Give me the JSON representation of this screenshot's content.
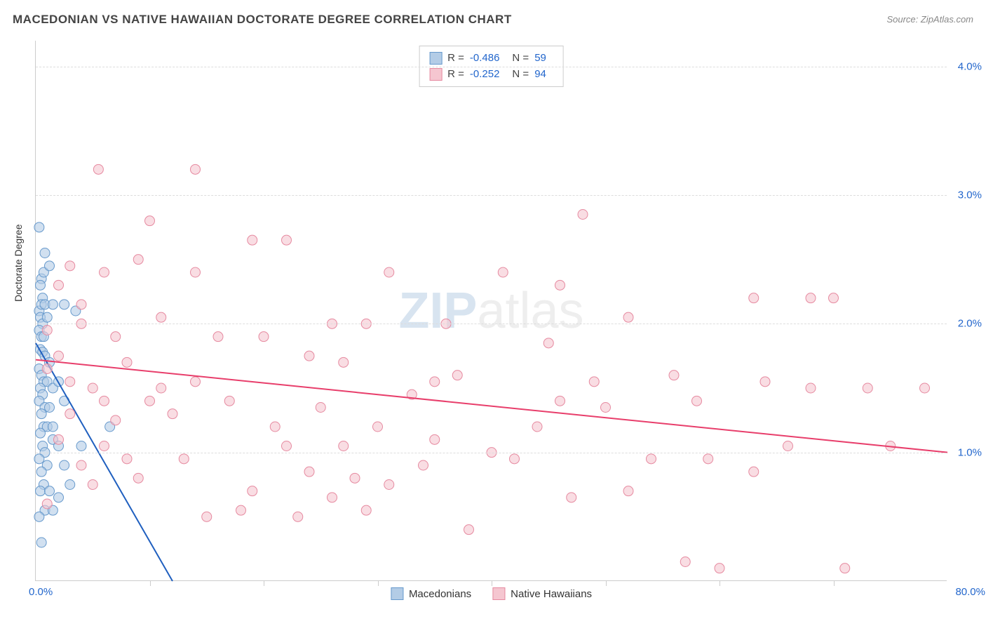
{
  "title": "MACEDONIAN VS NATIVE HAWAIIAN DOCTORATE DEGREE CORRELATION CHART",
  "source": "Source: ZipAtlas.com",
  "y_axis_label": "Doctorate Degree",
  "watermark_zip": "ZIP",
  "watermark_atlas": "atlas",
  "chart": {
    "type": "scatter",
    "xlim": [
      0,
      80
    ],
    "ylim": [
      0,
      4.2
    ],
    "x_min_label": "0.0%",
    "x_max_label": "80.0%",
    "y_ticks": [
      1.0,
      2.0,
      3.0,
      4.0
    ],
    "y_tick_labels": [
      "1.0%",
      "2.0%",
      "3.0%",
      "4.0%"
    ],
    "x_ticks": [
      10,
      20,
      30,
      40,
      50,
      60,
      70
    ],
    "grid_color": "#dddddd",
    "background_color": "#ffffff",
    "series": [
      {
        "name": "Macedonians",
        "color_fill": "#b3cce6",
        "color_stroke": "#6699cc",
        "marker_radius": 7,
        "marker_opacity": 0.6,
        "r_value": "-0.486",
        "n_value": "59",
        "regression": {
          "x1": 0,
          "y1": 1.85,
          "x2": 12,
          "y2": 0,
          "color": "#1f5fbf",
          "width": 2
        },
        "points": [
          [
            0.3,
            2.75
          ],
          [
            0.8,
            2.55
          ],
          [
            0.5,
            2.35
          ],
          [
            0.7,
            2.4
          ],
          [
            0.4,
            2.3
          ],
          [
            0.6,
            2.2
          ],
          [
            1.2,
            2.45
          ],
          [
            0.3,
            2.1
          ],
          [
            0.5,
            2.15
          ],
          [
            0.8,
            2.15
          ],
          [
            0.4,
            2.05
          ],
          [
            0.6,
            2.0
          ],
          [
            1.0,
            2.05
          ],
          [
            0.3,
            1.95
          ],
          [
            0.5,
            1.9
          ],
          [
            0.7,
            1.9
          ],
          [
            1.5,
            2.15
          ],
          [
            2.5,
            2.15
          ],
          [
            3.5,
            2.1
          ],
          [
            0.4,
            1.8
          ],
          [
            0.6,
            1.78
          ],
          [
            0.8,
            1.75
          ],
          [
            1.2,
            1.7
          ],
          [
            0.3,
            1.65
          ],
          [
            0.5,
            1.6
          ],
          [
            0.7,
            1.55
          ],
          [
            1.0,
            1.55
          ],
          [
            0.4,
            1.5
          ],
          [
            0.6,
            1.45
          ],
          [
            1.5,
            1.5
          ],
          [
            2.0,
            1.55
          ],
          [
            0.3,
            1.4
          ],
          [
            0.8,
            1.35
          ],
          [
            1.2,
            1.35
          ],
          [
            0.5,
            1.3
          ],
          [
            0.7,
            1.2
          ],
          [
            1.0,
            1.2
          ],
          [
            2.5,
            1.4
          ],
          [
            0.4,
            1.15
          ],
          [
            1.5,
            1.1
          ],
          [
            4.0,
            1.05
          ],
          [
            0.6,
            1.05
          ],
          [
            0.8,
            1.0
          ],
          [
            2.0,
            1.05
          ],
          [
            0.3,
            0.95
          ],
          [
            1.0,
            0.9
          ],
          [
            2.5,
            0.9
          ],
          [
            0.5,
            0.85
          ],
          [
            1.5,
            1.2
          ],
          [
            0.7,
            0.75
          ],
          [
            3.0,
            0.75
          ],
          [
            0.4,
            0.7
          ],
          [
            1.2,
            0.7
          ],
          [
            0.8,
            0.55
          ],
          [
            1.5,
            0.55
          ],
          [
            0.3,
            0.5
          ],
          [
            2.0,
            0.65
          ],
          [
            0.5,
            0.3
          ],
          [
            6.5,
            1.2
          ]
        ]
      },
      {
        "name": "Native Hawaiians",
        "color_fill": "#f5c6d0",
        "color_stroke": "#e68aa0",
        "marker_radius": 7,
        "marker_opacity": 0.6,
        "r_value": "-0.252",
        "n_value": "94",
        "regression": {
          "x1": 0,
          "y1": 1.72,
          "x2": 80,
          "y2": 1.0,
          "color": "#e83e6b",
          "width": 2
        },
        "points": [
          [
            5.5,
            3.2
          ],
          [
            14,
            3.2
          ],
          [
            10,
            2.8
          ],
          [
            9,
            2.5
          ],
          [
            19,
            2.65
          ],
          [
            22,
            2.65
          ],
          [
            48,
            2.85
          ],
          [
            6,
            2.4
          ],
          [
            14,
            2.4
          ],
          [
            11,
            2.05
          ],
          [
            31,
            2.4
          ],
          [
            41,
            2.4
          ],
          [
            46,
            2.3
          ],
          [
            68,
            2.2
          ],
          [
            63,
            2.2
          ],
          [
            4,
            2.0
          ],
          [
            16,
            1.9
          ],
          [
            26,
            2.0
          ],
          [
            29,
            2.0
          ],
          [
            36,
            2.0
          ],
          [
            45,
            1.85
          ],
          [
            52,
            2.05
          ],
          [
            2,
            1.75
          ],
          [
            8,
            1.7
          ],
          [
            20,
            1.9
          ],
          [
            24,
            1.75
          ],
          [
            27,
            1.7
          ],
          [
            35,
            1.55
          ],
          [
            37,
            1.6
          ],
          [
            49,
            1.55
          ],
          [
            46,
            1.4
          ],
          [
            58,
            1.4
          ],
          [
            5,
            1.5
          ],
          [
            11,
            1.5
          ],
          [
            14,
            1.55
          ],
          [
            3,
            1.3
          ],
          [
            7,
            1.25
          ],
          [
            25,
            1.35
          ],
          [
            30,
            1.2
          ],
          [
            22,
            1.05
          ],
          [
            64,
            1.55
          ],
          [
            68,
            1.5
          ],
          [
            73,
            1.5
          ],
          [
            75,
            1.05
          ],
          [
            66,
            1.05
          ],
          [
            54,
            0.95
          ],
          [
            47,
            0.65
          ],
          [
            35,
            1.1
          ],
          [
            27,
            1.05
          ],
          [
            2,
            1.1
          ],
          [
            6,
            1.05
          ],
          [
            4,
            0.9
          ],
          [
            9,
            0.8
          ],
          [
            34,
            0.9
          ],
          [
            38,
            0.4
          ],
          [
            52,
            0.7
          ],
          [
            19,
            0.7
          ],
          [
            15,
            0.5
          ],
          [
            18,
            0.55
          ],
          [
            23,
            0.5
          ],
          [
            24,
            0.85
          ],
          [
            28,
            0.8
          ],
          [
            31,
            0.75
          ],
          [
            40,
            1.0
          ],
          [
            60,
            0.1
          ],
          [
            63,
            0.85
          ],
          [
            71,
            0.1
          ],
          [
            78,
            1.5
          ],
          [
            1,
            1.65
          ],
          [
            3,
            1.55
          ],
          [
            1,
            0.6
          ],
          [
            5,
            0.75
          ],
          [
            12,
            1.3
          ],
          [
            17,
            1.4
          ],
          [
            21,
            1.2
          ],
          [
            33,
            1.45
          ],
          [
            44,
            1.2
          ],
          [
            42,
            0.95
          ],
          [
            50,
            1.35
          ],
          [
            56,
            1.6
          ],
          [
            59,
            0.95
          ],
          [
            29,
            0.55
          ],
          [
            26,
            0.65
          ],
          [
            7,
            1.9
          ],
          [
            2,
            2.3
          ],
          [
            4,
            2.15
          ],
          [
            1,
            1.95
          ],
          [
            3,
            2.45
          ],
          [
            13,
            0.95
          ],
          [
            10,
            1.4
          ],
          [
            6,
            1.4
          ],
          [
            8,
            0.95
          ],
          [
            70,
            2.2
          ],
          [
            57,
            0.15
          ]
        ]
      }
    ]
  },
  "legend": {
    "r_label": "R =",
    "n_label": "N ="
  },
  "bottom_legend": {
    "series1": "Macedonians",
    "series2": "Native Hawaiians"
  }
}
